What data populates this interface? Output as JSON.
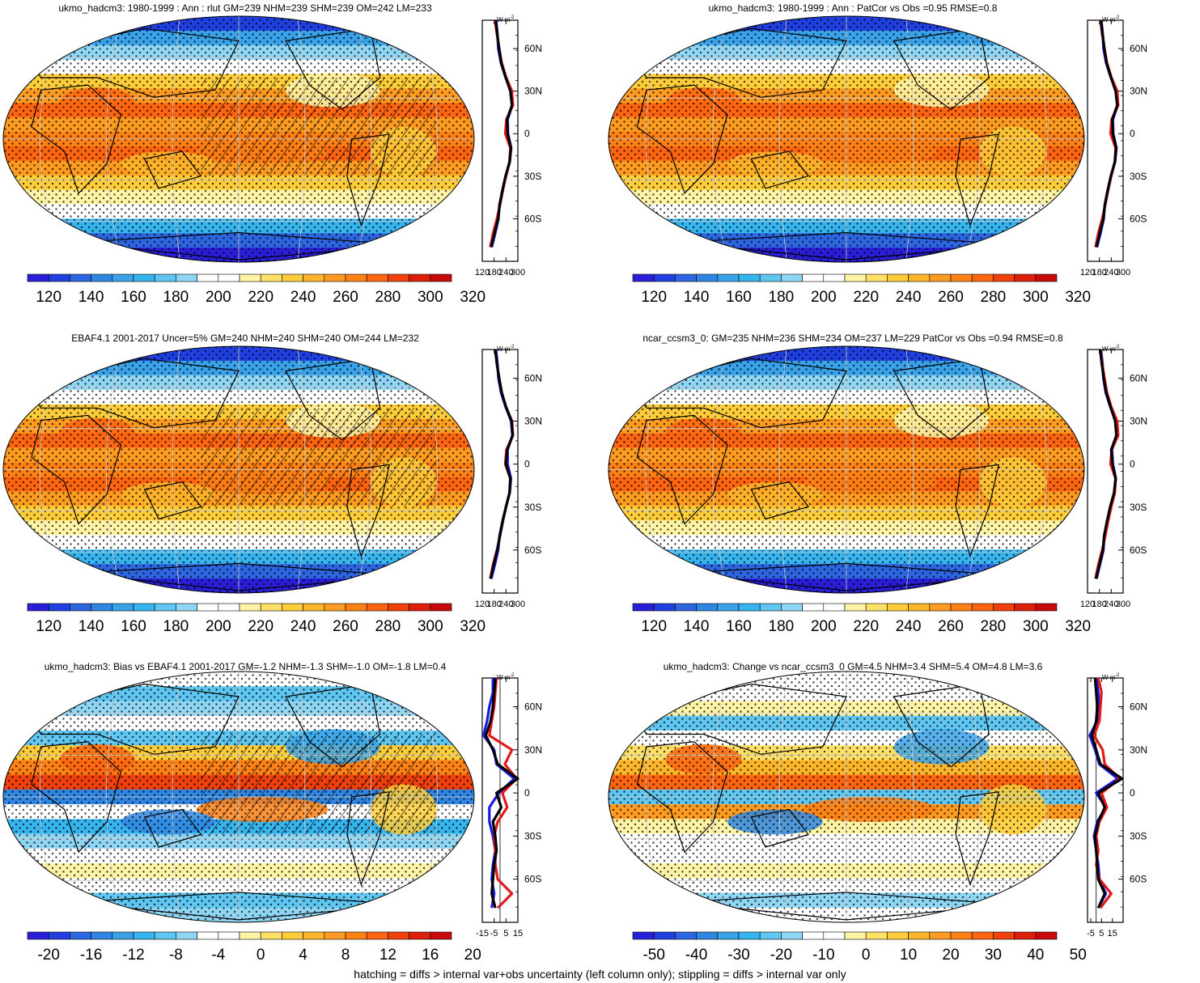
{
  "caption": "hatching = diffs > internal var+obs uncertainty (left column only); stippling = diffs > internal var only",
  "colors": {
    "abs_scale": [
      "#2a1ed8",
      "#1f3fe0",
      "#2d66e0",
      "#2f86e2",
      "#3aa2e8",
      "#36b4ee",
      "#5ec6f0",
      "#8fd6f4",
      "#ffffff",
      "#ffffff",
      "#fff3a6",
      "#ffe066",
      "#ffcd3a",
      "#ffb52a",
      "#ff9b20",
      "#ff8015",
      "#ff6410",
      "#f0400c",
      "#dd1f0a",
      "#c80a0a"
    ],
    "diff_scale": [
      "#2a1ed8",
      "#1f3fe0",
      "#2d66e0",
      "#2f86e2",
      "#3aa2e8",
      "#36b4ee",
      "#5ec6f0",
      "#8fd6f4",
      "#ffffff",
      "#ffffff",
      "#fff3a6",
      "#ffe066",
      "#ffcd3a",
      "#ffb52a",
      "#ff9b20",
      "#ff8015",
      "#ff6410",
      "#f0400c",
      "#dd1f0a",
      "#c80a0a"
    ],
    "line_model": "#000000",
    "line_obs": "#e31a1c",
    "line_ref": "#1a1ae3"
  },
  "chart_data": [
    {
      "type": "heatmap",
      "title": "ukmo_hadcm3: 1980-1999 : Ann : rlut GM=239 NHM=239 SHM=239 OM=242 LM=233",
      "colorbar": {
        "ticks": [
          "120",
          "140",
          "160",
          "180",
          "200",
          "220",
          "240",
          "260",
          "280",
          "300",
          "320"
        ]
      },
      "zonal_mean": {
        "unit_label": "W m",
        "unit_sup": "-2",
        "xticks": [
          "120",
          "180",
          "240",
          "300"
        ],
        "xlim": [
          120,
          300
        ],
        "yticks": [
          "60N",
          "30N",
          "0",
          "30S",
          "60S"
        ],
        "lat": [
          80,
          70,
          60,
          50,
          40,
          30,
          20,
          10,
          0,
          -10,
          -20,
          -30,
          -40,
          -50,
          -60,
          -70,
          -80
        ],
        "series": [
          {
            "name": "model",
            "values": [
              188,
              196,
              205,
              216,
              238,
              262,
              270,
              245,
              248,
              265,
              258,
              238,
              222,
              208,
              200,
              182,
              165
            ]
          },
          {
            "name": "obs",
            "values": [
              185,
              194,
              206,
              218,
              240,
              270,
              275,
              242,
              236,
              262,
              258,
              240,
              224,
              210,
              194,
              175,
              160
            ]
          },
          {
            "name": "ref",
            "values": [
              190,
              197,
              201,
              214,
              237,
              264,
              272,
              248,
              250,
              266,
              259,
              238,
              222,
              207,
              202,
              186,
              168
            ]
          }
        ]
      }
    },
    {
      "type": "heatmap",
      "title": "ukmo_hadcm3: 1980-1999 : Ann : PatCor vs Obs =0.95 RMSE=0.8",
      "colorbar": {
        "ticks": [
          "120",
          "140",
          "160",
          "180",
          "200",
          "220",
          "240",
          "260",
          "280",
          "300",
          "320"
        ]
      },
      "zonal_mean": {
        "unit_label": "W m",
        "unit_sup": "-2",
        "xticks": [
          "120",
          "180",
          "240",
          "300"
        ],
        "xlim": [
          120,
          300
        ],
        "yticks": [
          "60N",
          "30N",
          "0",
          "30S",
          "60S"
        ],
        "lat": [
          80,
          70,
          60,
          50,
          40,
          30,
          20,
          10,
          0,
          -10,
          -20,
          -30,
          -40,
          -50,
          -60,
          -70,
          -80
        ],
        "series": [
          {
            "name": "model",
            "values": [
              188,
              196,
              205,
              216,
              238,
              262,
              270,
              245,
              248,
              265,
              258,
              238,
              222,
              208,
              200,
              182,
              165
            ]
          },
          {
            "name": "obs",
            "values": [
              185,
              194,
              206,
              218,
              240,
              270,
              275,
              242,
              236,
              262,
              258,
              240,
              224,
              210,
              194,
              175,
              160
            ]
          },
          {
            "name": "ref",
            "values": [
              190,
              197,
              201,
              214,
              237,
              264,
              272,
              248,
              250,
              266,
              259,
              238,
              222,
              207,
              202,
              186,
              168
            ]
          }
        ]
      }
    },
    {
      "type": "heatmap",
      "title": "EBAF4.1 2001-2017 Uncer=5% GM=240 NHM=240 SHM=240 OM=244 LM=232",
      "colorbar": {
        "ticks": [
          "120",
          "140",
          "160",
          "180",
          "200",
          "220",
          "240",
          "260",
          "280",
          "300",
          "320"
        ]
      },
      "zonal_mean": {
        "unit_label": "W m",
        "unit_sup": "-2",
        "xticks": [
          "120",
          "180",
          "240",
          "300"
        ],
        "xlim": [
          120,
          300
        ],
        "yticks": [
          "60N",
          "30N",
          "0",
          "30S",
          "60S"
        ],
        "lat": [
          80,
          70,
          60,
          50,
          40,
          30,
          20,
          10,
          0,
          -10,
          -20,
          -30,
          -40,
          -50,
          -60,
          -70,
          -80
        ],
        "series": [
          {
            "name": "model",
            "values": [
              186,
              194,
              205,
              218,
              240,
              268,
              274,
              246,
              240,
              262,
              258,
              240,
              223,
              209,
              196,
              178,
              162
            ]
          },
          {
            "name": "obs",
            "values": [
              185,
              194,
              206,
              218,
              240,
              270,
              275,
              242,
              236,
              262,
              258,
              240,
              224,
              210,
              194,
              175,
              160
            ]
          },
          {
            "name": "ref",
            "values": [
              189,
              197,
              202,
              215,
              238,
              266,
              272,
              248,
              248,
              265,
              259,
              239,
              222,
              207,
              200,
              184,
              166
            ]
          }
        ]
      }
    },
    {
      "type": "heatmap",
      "title": "ncar_ccsm3_0: GM=235 NHM=236 SHM=234 OM=237 LM=229 PatCor vs Obs =0.94 RMSE=0.8",
      "colorbar": {
        "ticks": [
          "120",
          "140",
          "160",
          "180",
          "200",
          "220",
          "240",
          "260",
          "280",
          "300",
          "320"
        ]
      },
      "zonal_mean": {
        "unit_label": "W m",
        "unit_sup": "-2",
        "xticks": [
          "120",
          "180",
          "240",
          "300"
        ],
        "xlim": [
          120,
          300
        ],
        "yticks": [
          "60N",
          "30N",
          "0",
          "30S",
          "60S"
        ],
        "lat": [
          80,
          70,
          60,
          50,
          40,
          30,
          20,
          10,
          0,
          -10,
          -20,
          -30,
          -40,
          -50,
          -60,
          -70,
          -80
        ],
        "series": [
          {
            "name": "model",
            "values": [
              184,
              192,
              202,
              214,
              236,
              260,
              266,
              240,
              246,
              262,
              254,
              234,
              218,
              204,
              198,
              180,
              163
            ]
          },
          {
            "name": "obs",
            "values": [
              185,
              194,
              206,
              218,
              240,
              270,
              275,
              242,
              236,
              262,
              258,
              240,
              224,
              210,
              194,
              175,
              160
            ]
          },
          {
            "name": "ref",
            "values": [
              188,
              196,
              200,
              212,
              235,
              262,
              268,
              244,
              248,
              263,
              255,
              235,
              219,
              205,
              200,
              183,
              166
            ]
          }
        ]
      }
    },
    {
      "type": "heatmap",
      "title": "ukmo_hadcm3: Bias vs EBAF4.1 2001-2017 GM=-1.2 NHM=-1.3 SHM=-1.0 OM=-1.8 LM=0.4",
      "colorbar": {
        "ticks": [
          "-20",
          "-16",
          "-12",
          "-8",
          "-4",
          "0",
          "4",
          "8",
          "12",
          "16",
          "20"
        ]
      },
      "zonal_mean": {
        "unit_label": "W m",
        "unit_sup": "-2",
        "xticks": [
          "-15",
          "-5",
          "5",
          "15"
        ],
        "xlim": [
          -15,
          15
        ],
        "yticks": [
          "60N",
          "30N",
          "0",
          "30S",
          "60S"
        ],
        "lat": [
          80,
          70,
          60,
          50,
          40,
          30,
          20,
          10,
          0,
          -10,
          -20,
          -30,
          -40,
          -50,
          -60,
          -70,
          -80
        ],
        "series": [
          {
            "name": "model",
            "values": [
              -4,
              -5,
              -6,
              -8,
              -12,
              -6,
              -2,
              15,
              -3,
              1,
              -6,
              -4,
              -3,
              -5,
              -6,
              -7,
              -4
            ]
          },
          {
            "name": "obs",
            "values": [
              -3,
              -4,
              -5,
              -7,
              -9,
              10,
              4,
              14,
              2,
              6,
              -2,
              -5,
              -4,
              -4,
              -2,
              10,
              -2
            ]
          },
          {
            "name": "ref",
            "values": [
              -6,
              -6,
              -9,
              -11,
              -14,
              -5,
              -3,
              12,
              -1,
              -9,
              -9,
              -6,
              -4,
              -6,
              -7,
              -5,
              -7
            ]
          }
        ]
      }
    },
    {
      "type": "heatmap",
      "title": "ukmo_hadcm3: Change vs ncar_ccsm3_0 GM=4.5 NHM=3.4 SHM=5.4 OM=4.8 LM=3.6",
      "colorbar": {
        "ticks": [
          "-50",
          "-40",
          "-30",
          "-20",
          "-10",
          "0",
          "10",
          "20",
          "30",
          "40",
          "50"
        ]
      },
      "zonal_mean": {
        "unit_label": "W m",
        "unit_sup": "-2",
        "xticks": [
          "-5",
          "5",
          "15"
        ],
        "xlim": [
          -8,
          25
        ],
        "yticks": [
          "60N",
          "30N",
          "0",
          "30S",
          "60S"
        ],
        "lat": [
          80,
          70,
          60,
          50,
          40,
          30,
          20,
          10,
          0,
          -10,
          -20,
          -30,
          -40,
          -50,
          -60,
          -70,
          -80
        ],
        "series": [
          {
            "name": "model",
            "values": [
              -1,
              0,
              1,
              0,
              -4,
              0,
              4,
              24,
              2,
              8,
              2,
              -1,
              0,
              1,
              2,
              8,
              2
            ]
          },
          {
            "name": "obs",
            "values": [
              2,
              5,
              4,
              3,
              -2,
              6,
              8,
              22,
              5,
              10,
              3,
              0,
              2,
              0,
              3,
              14,
              4
            ]
          },
          {
            "name": "ref",
            "values": [
              0,
              2,
              3,
              1,
              -6,
              -1,
              3,
              20,
              0,
              9,
              1,
              -2,
              0,
              2,
              3,
              9,
              2
            ]
          }
        ]
      }
    }
  ]
}
